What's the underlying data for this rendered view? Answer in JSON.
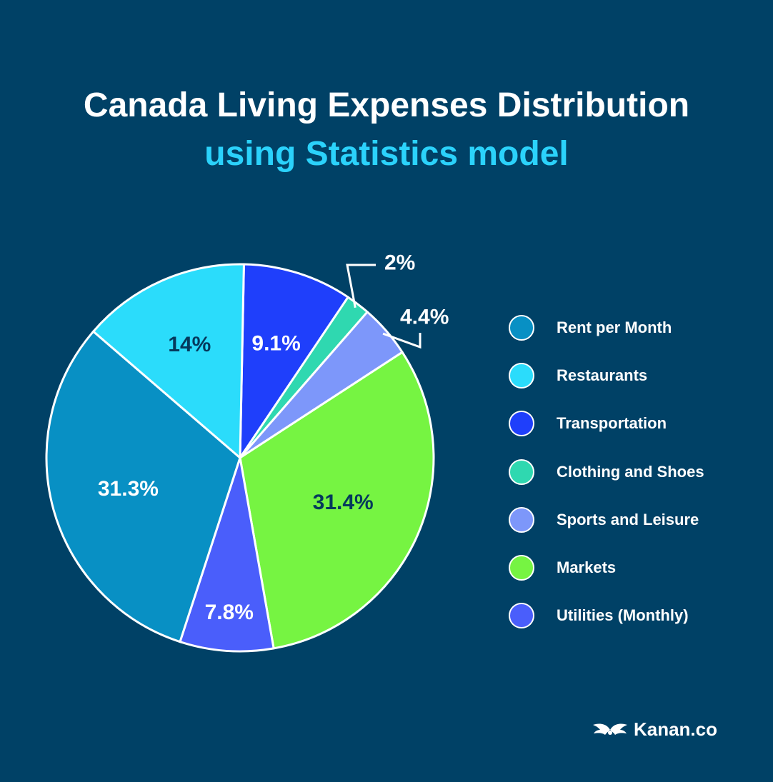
{
  "header": {
    "title": "Canada Living Expenses Distribution",
    "subtitle": "using Statistics model"
  },
  "chart_data": {
    "type": "pie",
    "title": "Canada Living Expenses Distribution",
    "subtitle": "using Statistics model",
    "legend_position": "right",
    "slices": [
      {
        "label": "Transportation",
        "value": 9.1,
        "display": "9.1%",
        "color": "#1f3ffb",
        "text_color": "#ffffff"
      },
      {
        "label": "Clothing and Shoes",
        "value": 2.0,
        "display": "2%",
        "color": "#2fd8b0",
        "text_color": "#ffffff"
      },
      {
        "label": "Sports and Leisure",
        "value": 4.4,
        "display": "4.4%",
        "color": "#7d97fa",
        "text_color": "#ffffff"
      },
      {
        "label": "Markets",
        "value": 31.4,
        "display": "31.4%",
        "color": "#76f442",
        "text_color": "#05395c"
      },
      {
        "label": "Utilities (Monthly)",
        "value": 7.8,
        "display": "7.8%",
        "color": "#4a5efb",
        "text_color": "#ffffff"
      },
      {
        "label": "Rent per Month",
        "value": 31.3,
        "display": "31.3%",
        "color": "#0890c4",
        "text_color": "#ffffff"
      },
      {
        "label": "Restaurants",
        "value": 14.0,
        "display": "14%",
        "color": "#2bdcfb",
        "text_color": "#05395c"
      }
    ]
  },
  "legend": {
    "items": [
      {
        "label": "Rent per Month",
        "color": "#0890c4"
      },
      {
        "label": "Restaurants",
        "color": "#2bdcfb"
      },
      {
        "label": "Transportation",
        "color": "#1f3ffb"
      },
      {
        "label": "Clothing and Shoes",
        "color": "#2fd8b0"
      },
      {
        "label": "Sports and Leisure",
        "color": "#7d97fa"
      },
      {
        "label": "Markets",
        "color": "#76f442"
      },
      {
        "label": "Utilities (Monthly)",
        "color": "#4a5efb"
      }
    ]
  },
  "brand": {
    "name": "Kanan.co",
    "logo_icon": "kanan-wings-logo-icon"
  }
}
